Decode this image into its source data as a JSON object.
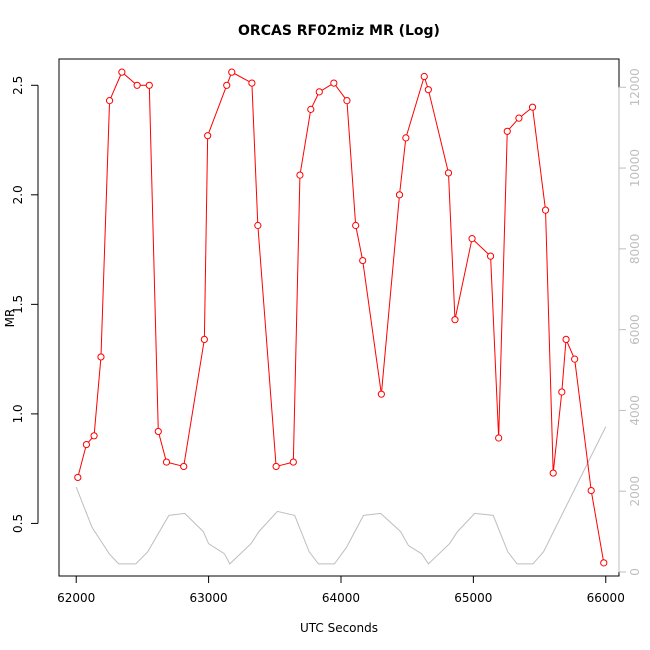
{
  "chart_data": {
    "type": "line",
    "title": "ORCAS RF02miz MR (Log)",
    "xlabel": "UTC Seconds",
    "ylabel": "MR",
    "xlim": [
      61870,
      66100
    ],
    "ylim": [
      0.26,
      2.62
    ],
    "y2lim": [
      -100,
      12700
    ],
    "x_ticks": [
      62000,
      63000,
      64000,
      65000,
      66000
    ],
    "y_ticks": [
      0.5,
      1.0,
      1.5,
      2.0,
      2.5
    ],
    "y_tick_labels": [
      "0.5",
      "1.0",
      "1.5",
      "2.0",
      "2.5"
    ],
    "y2_ticks": [
      0,
      2000,
      4000,
      6000,
      8000,
      10000,
      12000
    ],
    "grid": false,
    "colors": {
      "mr": "#ff0000",
      "altitude": "#bebebe"
    },
    "series": [
      {
        "axis": "left",
        "style": "line-points",
        "x": [
          62012,
          62077,
          62135,
          62187,
          62252,
          62345,
          62460,
          62552,
          62620,
          62682,
          62812,
          62968,
          62993,
          63137,
          63175,
          63327,
          63372,
          63510,
          63640,
          63690,
          63772,
          63836,
          63946,
          64045,
          64111,
          64164,
          64305,
          64442,
          64490,
          64629,
          64660,
          64812,
          64861,
          64990,
          65130,
          65191,
          65256,
          65344,
          65447,
          65545,
          65603,
          65668,
          65700,
          65765,
          65890,
          65985
        ],
        "y": [
          0.71,
          0.86,
          0.9,
          1.26,
          2.43,
          2.56,
          2.5,
          2.5,
          0.92,
          0.78,
          0.76,
          1.34,
          2.27,
          2.5,
          2.56,
          2.51,
          1.86,
          0.76,
          0.78,
          2.09,
          2.39,
          2.47,
          2.51,
          2.43,
          1.86,
          1.7,
          1.09,
          2.0,
          2.26,
          2.54,
          2.48,
          2.1,
          1.43,
          1.8,
          1.72,
          0.89,
          2.29,
          2.35,
          2.4,
          1.93,
          0.73,
          1.1,
          1.34,
          1.25,
          0.65,
          0.32
        ]
      },
      {
        "axis": "right",
        "style": "line",
        "x": [
          62000,
          62120,
          62250,
          62320,
          62450,
          62540,
          62700,
          62820,
          62960,
          63000,
          63120,
          63160,
          63320,
          63380,
          63520,
          63650,
          63760,
          63830,
          63950,
          64040,
          64170,
          64300,
          64450,
          64510,
          64610,
          64660,
          64820,
          64880,
          65010,
          65150,
          65260,
          65330,
          65450,
          65530,
          66000
        ],
        "y": [
          2100,
          1100,
          450,
          200,
          200,
          500,
          1400,
          1450,
          1000,
          700,
          450,
          200,
          700,
          1000,
          1500,
          1400,
          500,
          200,
          200,
          600,
          1400,
          1450,
          1000,
          650,
          450,
          200,
          700,
          1000,
          1450,
          1400,
          500,
          200,
          200,
          500,
          3600
        ]
      }
    ]
  }
}
